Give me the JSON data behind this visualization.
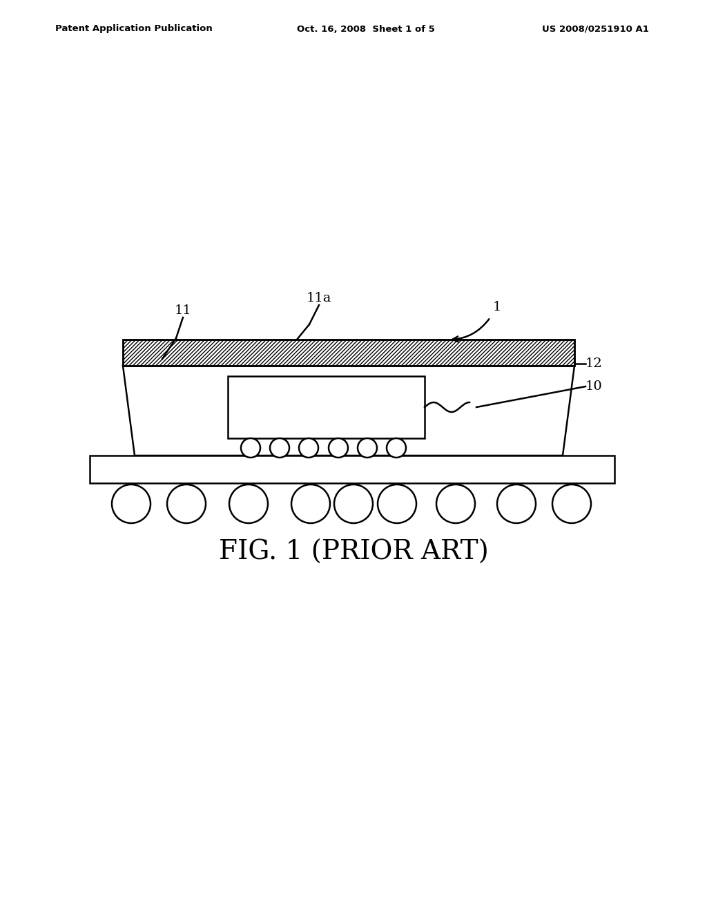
{
  "bg_color": "#ffffff",
  "line_color": "#000000",
  "header_left": "Patent Application Publication",
  "header_mid": "Oct. 16, 2008  Sheet 1 of 5",
  "header_right": "US 2008/0251910 A1",
  "caption": "FIG. 1 (PRIOR ART)"
}
